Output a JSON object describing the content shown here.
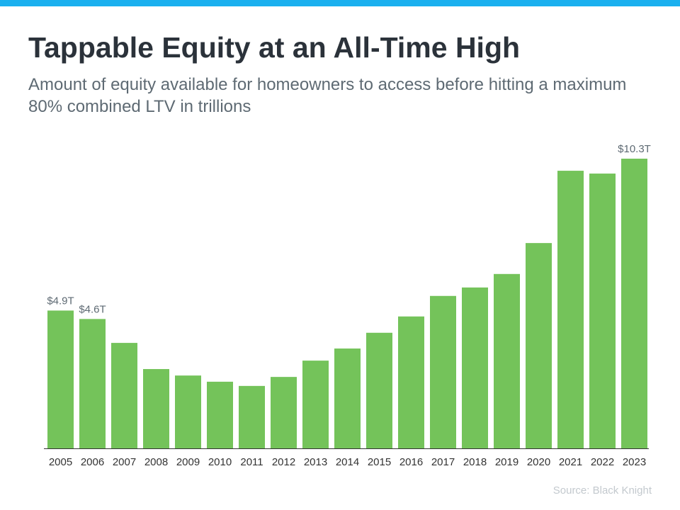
{
  "header": {
    "title": "Tappable Equity at an All-Time High",
    "subtitle": "Amount of equity available for homeowners to access before hitting a maximum 80% combined LTV in trillions"
  },
  "source": "Source: Black Knight",
  "colors": {
    "accent_bar": "#1ab0ef",
    "bar": "#74c35a",
    "axis": "#333333",
    "label": "#5e6a73"
  },
  "chart_data": {
    "type": "bar",
    "title": "Tappable Equity at an All-Time High",
    "xlabel": "",
    "ylabel": "",
    "ylim": [
      0,
      10.3
    ],
    "grid": false,
    "categories": [
      "2005",
      "2006",
      "2007",
      "2008",
      "2009",
      "2010",
      "2011",
      "2012",
      "2013",
      "2014",
      "2015",
      "2016",
      "2017",
      "2018",
      "2019",
      "2020",
      "2021",
      "2022",
      "2023"
    ],
    "values": [
      4.9,
      4.6,
      3.75,
      2.82,
      2.59,
      2.37,
      2.22,
      2.54,
      3.12,
      3.55,
      4.11,
      4.69,
      5.42,
      5.72,
      6.2,
      7.3,
      9.87,
      9.77,
      10.3
    ],
    "data_labels": {
      "2005": "$4.9T",
      "2006": "$4.6T",
      "2023": "$10.3T"
    }
  }
}
